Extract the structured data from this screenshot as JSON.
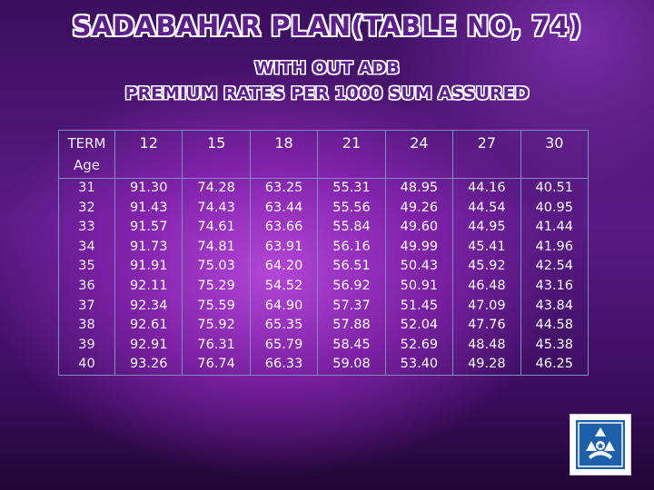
{
  "title": "SADABAHAR PLAN(TABLE NO, 74)",
  "subtitle1": "WITH OUT ADB",
  "subtitle2": "PREMIUM RATES PER 1000 SUM ASSURED",
  "table": {
    "corner_label_1": "TERM",
    "corner_label_2": "Age",
    "terms": [
      "12",
      "15",
      "18",
      "21",
      "24",
      "27",
      "30"
    ],
    "ages": [
      "31",
      "32",
      "33",
      "34",
      "35",
      "36",
      "37",
      "38",
      "39",
      "40"
    ],
    "columns": [
      [
        "91.30",
        "91.43",
        "91.57",
        "91.73",
        "91.91",
        "92.11",
        "92.34",
        "92.61",
        "92.91",
        "93.26"
      ],
      [
        "74.28",
        "74.43",
        "74.61",
        "74.81",
        "75.03",
        "75.29",
        "75.59",
        "75.92",
        "76.31",
        "76.74"
      ],
      [
        "63.25",
        "63.44",
        "63.66",
        "63.91",
        "64.20",
        "54.52",
        "64.90",
        "65.35",
        "65.79",
        "66.33"
      ],
      [
        "55.31",
        "55.56",
        "55.84",
        "56.16",
        "56.51",
        "56.92",
        "57.37",
        "57.88",
        "58.45",
        "59.08"
      ],
      [
        "48.95",
        "49.26",
        "49.60",
        "49.99",
        "50.43",
        "50.91",
        "51.45",
        "52.04",
        "52.69",
        "53.40"
      ],
      [
        "44.16",
        "44.54",
        "44.95",
        "45.41",
        "45.92",
        "46.48",
        "47.09",
        "47.76",
        "48.48",
        "49.28"
      ],
      [
        "40.51",
        "40.95",
        "41.44",
        "41.96",
        "42.54",
        "43.16",
        "43.84",
        "44.58",
        "45.38",
        "46.25"
      ]
    ]
  },
  "logo": {
    "icon": "insurance-logo-icon",
    "color": "#1d5fa8"
  }
}
